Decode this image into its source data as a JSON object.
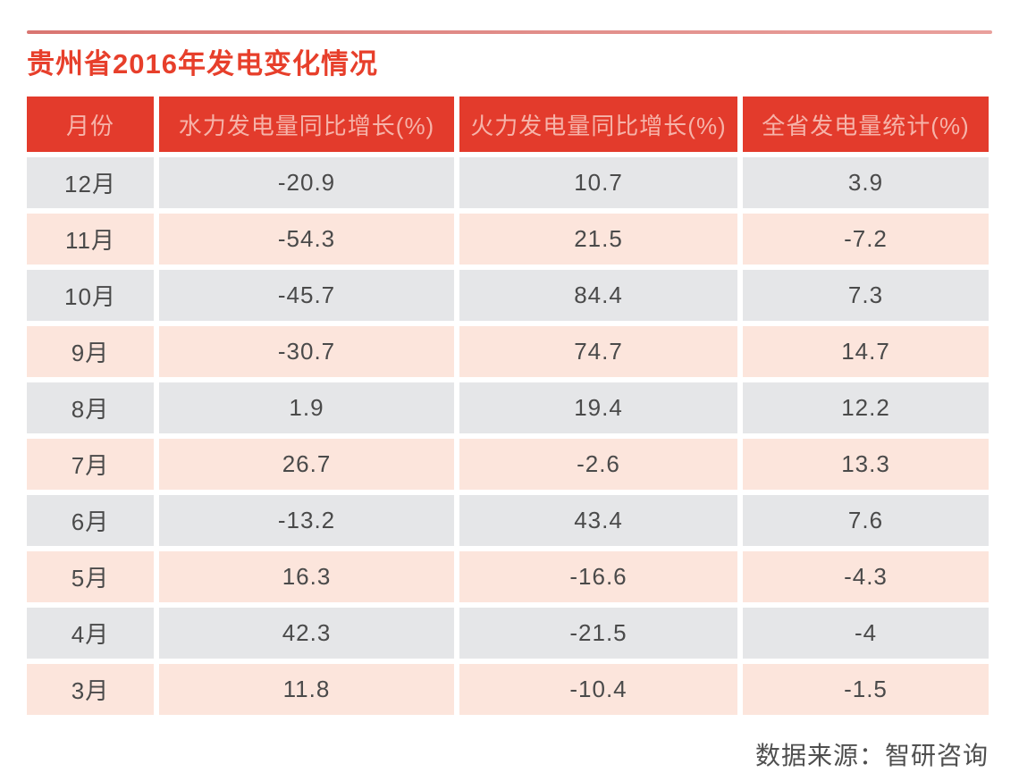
{
  "page": {
    "title": "贵州省2016年发电变化情况",
    "source_label": "数据来源：智研咨询"
  },
  "colors": {
    "accent_red": "#e33b2c",
    "title_red": "#e73f2b",
    "header_text_pink": "#f6b3a9",
    "row_gray": "#e5e6e8",
    "row_pink": "#fce5dc",
    "top_divider_pink": "#e08a86",
    "body_text": "#4a4a4a"
  },
  "chart_data": {
    "type": "table",
    "title": "贵州省2016年发电变化情况",
    "columns": [
      "月份",
      "水力发电量同比增长(%)",
      "火力发电量同比增长(%)",
      "全省发电量统计(%)"
    ],
    "rows": [
      [
        "12月",
        "-20.9",
        "10.7",
        "3.9"
      ],
      [
        "11月",
        "-54.3",
        "21.5",
        "-7.2"
      ],
      [
        "10月",
        "-45.7",
        "84.4",
        "7.3"
      ],
      [
        "9月",
        "-30.7",
        "74.7",
        "14.7"
      ],
      [
        "8月",
        "1.9",
        "19.4",
        "12.2"
      ],
      [
        "7月",
        "26.7",
        "-2.6",
        "13.3"
      ],
      [
        "6月",
        "-13.2",
        "43.4",
        "7.6"
      ],
      [
        "5月",
        "16.3",
        "-16.6",
        "-4.3"
      ],
      [
        "4月",
        "42.3",
        "-21.5",
        "-4"
      ],
      [
        "3月",
        "11.8",
        "-10.4",
        "-1.5"
      ]
    ],
    "source": "数据来源：智研咨询",
    "layout": {
      "header_background": "red",
      "row_striping": "gray/pink alternating, first data row gray",
      "grid": "white gaps between cells",
      "value_alignment": "center"
    }
  }
}
